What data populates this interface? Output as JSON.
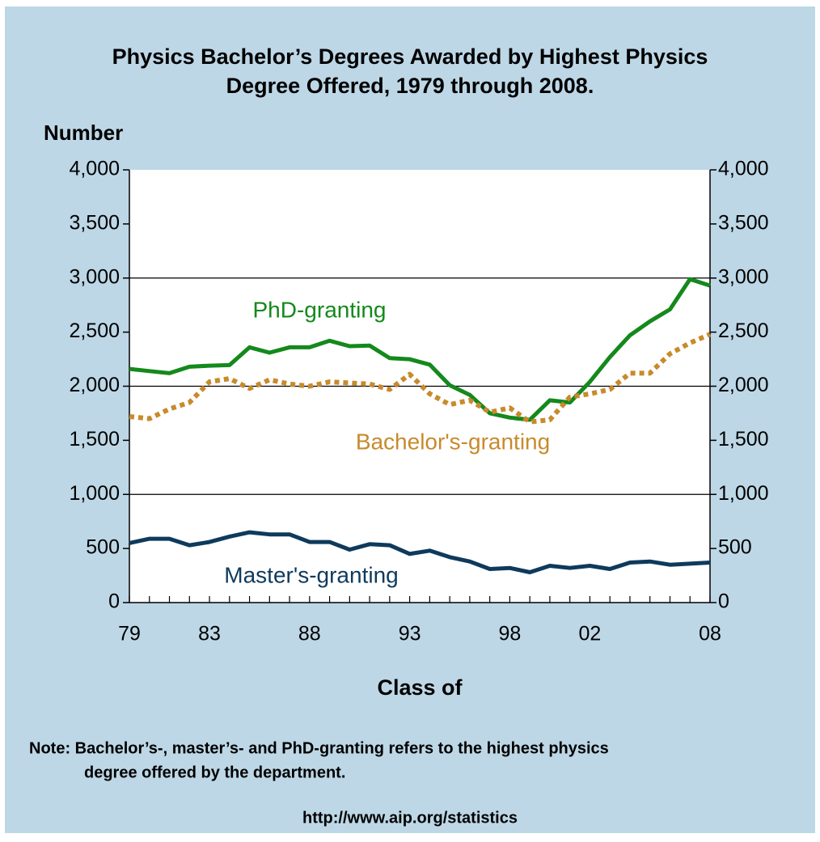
{
  "chart_data": {
    "type": "line",
    "title": [
      "Physics Bachelor’s Degrees Awarded by Highest Physics",
      "Degree Offered, 1979 through 2008."
    ],
    "y_label": "Number",
    "x_label": "Class of",
    "note": [
      "Note: Bachelor’s-, master’s-  and PhD-granting refers to the highest physics",
      "degree offered by the department."
    ],
    "source": "http://www.aip.org/statistics",
    "categories": [
      "79",
      null,
      null,
      null,
      "83",
      null,
      null,
      null,
      null,
      "88",
      null,
      null,
      null,
      null,
      "93",
      null,
      null,
      null,
      null,
      "98",
      null,
      null,
      null,
      "02",
      null,
      null,
      null,
      null,
      null,
      "08"
    ],
    "series": [
      {
        "name": "PhD-granting",
        "color": "#14891c",
        "dash": "solid",
        "values": [
          2160,
          2140,
          2120,
          2180,
          2190,
          2195,
          2360,
          2310,
          2360,
          2360,
          2420,
          2370,
          2375,
          2260,
          2250,
          2200,
          2010,
          1920,
          1750,
          1710,
          1690,
          1870,
          1850,
          2040,
          2270,
          2470,
          2600,
          2710,
          2990,
          2930
        ]
      },
      {
        "name": "Bachelor's-granting",
        "color": "#c88a2c",
        "dash": "dotted",
        "values": [
          1720,
          1700,
          1790,
          1850,
          2040,
          2070,
          1980,
          2060,
          2020,
          2000,
          2040,
          2030,
          2020,
          1970,
          2110,
          1930,
          1830,
          1870,
          1760,
          1800,
          1670,
          1690,
          1900,
          1930,
          1970,
          2120,
          2120,
          2300,
          2400,
          2480
        ]
      },
      {
        "name": "Master's-granting",
        "color": "#0e3a5c",
        "dash": "solid",
        "values": [
          550,
          590,
          590,
          530,
          560,
          610,
          650,
          630,
          630,
          560,
          560,
          490,
          540,
          530,
          450,
          480,
          420,
          380,
          310,
          320,
          280,
          340,
          320,
          340,
          310,
          370,
          380,
          350,
          360,
          370
        ]
      }
    ],
    "ylim": [
      0,
      4000
    ],
    "yticks": [
      0,
      500,
      {
        "value": 1000,
        "label": "1,000"
      },
      {
        "value": 1500,
        "label": "1,500"
      },
      {
        "value": 2000,
        "label": "2,000"
      },
      {
        "value": 2500,
        "label": "2,500"
      },
      {
        "value": 3000,
        "label": "3,000"
      },
      {
        "value": 3500,
        "label": "3,500"
      },
      {
        "value": 4000,
        "label": "4,000"
      }
    ],
    "ygrid": [
      1000,
      2000,
      3000
    ]
  }
}
